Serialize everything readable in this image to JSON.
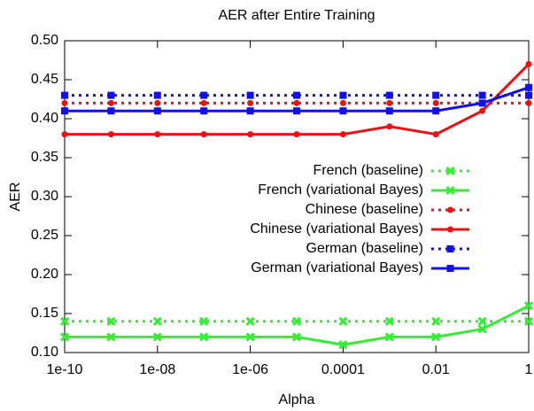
{
  "chart_data": {
    "type": "line",
    "title": "AER after Entire Training",
    "x_label": "Alpha",
    "y_label": "AER",
    "x": [
      1e-10,
      1e-09,
      1e-08,
      1e-07,
      1e-06,
      1e-05,
      0.0001,
      0.001,
      0.01,
      0.1,
      1
    ],
    "log_x": true,
    "xlim": [
      1e-10,
      1
    ],
    "xticks": [
      1e-10,
      {
        "value": 1e-08,
        "label": "1e-08"
      },
      {
        "value": 1e-06,
        "label": "1e-06"
      },
      0.0001,
      0.01,
      1
    ],
    "ylim": [
      0.1,
      0.5
    ],
    "yticks": [
      {
        "value": 0.1,
        "label": "0.10"
      },
      0.15,
      {
        "value": 0.2,
        "label": "0.20"
      },
      0.25,
      {
        "value": 0.3,
        "label": "0.30"
      },
      0.35,
      {
        "value": 0.4,
        "label": "0.40"
      },
      0.45,
      {
        "value": 0.5,
        "label": "0.50"
      }
    ],
    "legend": "center-right",
    "series": [
      {
        "name": "French (baseline)",
        "color": "#33ee33",
        "style": "dotted",
        "marker": "cross",
        "values": [
          0.14,
          0.14,
          0.14,
          0.14,
          0.14,
          0.14,
          0.14,
          0.14,
          0.14,
          0.14,
          0.14
        ]
      },
      {
        "name": "French (variational Bayes)",
        "color": "#33ee33",
        "style": "solid",
        "marker": "cross",
        "values": [
          0.12,
          0.12,
          0.12,
          0.12,
          0.12,
          0.12,
          0.11,
          0.12,
          0.12,
          0.13,
          0.16
        ]
      },
      {
        "name": "Chinese (baseline)",
        "color": "#ee1111",
        "style": "dotted",
        "marker": "circle",
        "values": [
          0.42,
          0.42,
          0.42,
          0.42,
          0.42,
          0.42,
          0.42,
          0.42,
          0.42,
          0.42,
          0.42
        ]
      },
      {
        "name": "Chinese (variational Bayes)",
        "color": "#ee1111",
        "style": "solid",
        "marker": "circle",
        "values": [
          0.38,
          0.38,
          0.38,
          0.38,
          0.38,
          0.38,
          0.38,
          0.39,
          0.38,
          0.41,
          0.47
        ]
      },
      {
        "name": "German (baseline)",
        "color": "#1111ee",
        "style": "dotted",
        "marker": "square",
        "values": [
          0.43,
          0.43,
          0.43,
          0.43,
          0.43,
          0.43,
          0.43,
          0.43,
          0.43,
          0.43,
          0.43
        ]
      },
      {
        "name": "German (variational Bayes)",
        "color": "#1111ee",
        "style": "solid",
        "marker": "square",
        "values": [
          0.41,
          0.41,
          0.41,
          0.41,
          0.41,
          0.41,
          0.41,
          0.41,
          0.41,
          0.42,
          0.44
        ]
      }
    ]
  }
}
